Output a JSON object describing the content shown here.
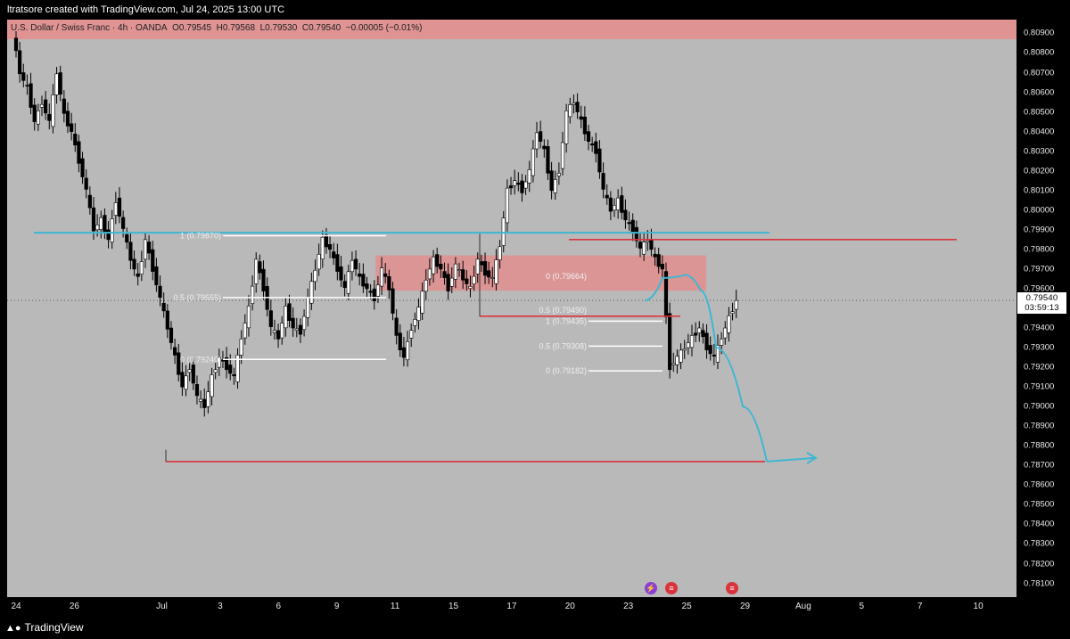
{
  "header": {
    "text": "ltratsore created with TradingView.com, Jul 24, 2025 13:00 UTC"
  },
  "symbol": {
    "name": "U.S. Dollar / Swiss Franc · 4h · OANDA",
    "open": "O0.79545",
    "high": "H0.79568",
    "low": "L0.79530",
    "close": "C0.79540",
    "change": "−0.00005 (−0.01%)"
  },
  "last_price": {
    "price": "0.79540",
    "countdown": "03:59:13"
  },
  "footer": {
    "brand": "TradingView"
  },
  "colors": {
    "bull": "#ffffff",
    "bear": "#000000",
    "zone": "#e88a8a",
    "cyan": "#3fb6d3",
    "red": "#d9343c",
    "plot_bg": "#b9b9b9"
  },
  "chart_data": {
    "type": "candlestick",
    "ylim": [
      0.7803,
      0.8097
    ],
    "price_ticks": [
      "0.80900",
      "0.80800",
      "0.80700",
      "0.80600",
      "0.80500",
      "0.80400",
      "0.80300",
      "0.80200",
      "0.80100",
      "0.80000",
      "0.79900",
      "0.79800",
      "0.79700",
      "0.79600",
      "0.79500",
      "0.79400",
      "0.79300",
      "0.79200",
      "0.79100",
      "0.79000",
      "0.78900",
      "0.78800",
      "0.78700",
      "0.78600",
      "0.78500",
      "0.78400",
      "0.78300",
      "0.78200",
      "0.78100"
    ],
    "time_ticks": [
      {
        "label": "24",
        "bar": 0
      },
      {
        "label": "26",
        "bar": 12
      },
      {
        "label": "Jul",
        "bar": 30
      },
      {
        "label": "3",
        "bar": 42
      },
      {
        "label": "6",
        "bar": 54
      },
      {
        "label": "9",
        "bar": 66
      },
      {
        "label": "11",
        "bar": 78
      },
      {
        "label": "15",
        "bar": 90
      },
      {
        "label": "17",
        "bar": 102
      },
      {
        "label": "20",
        "bar": 114
      },
      {
        "label": "23",
        "bar": 126
      },
      {
        "label": "25",
        "bar": 138
      },
      {
        "label": "29",
        "bar": 150
      },
      {
        "label": "Aug",
        "bar": 162
      },
      {
        "label": "5",
        "bar": 174
      },
      {
        "label": "7",
        "bar": 186
      },
      {
        "label": "10",
        "bar": 198
      }
    ],
    "path": [
      0.809,
      0.807,
      0.8062,
      0.8045,
      0.8055,
      0.8045,
      0.807,
      0.8048,
      0.804,
      0.8025,
      0.801,
      0.799,
      0.7995,
      0.7985,
      0.8005,
      0.799,
      0.7975,
      0.7965,
      0.7985,
      0.797,
      0.7955,
      0.794,
      0.7925,
      0.791,
      0.792,
      0.7905,
      0.79,
      0.7915,
      0.7925,
      0.792,
      0.7915,
      0.7935,
      0.795,
      0.7975,
      0.796,
      0.794,
      0.7935,
      0.795,
      0.794,
      0.7938,
      0.7955,
      0.797,
      0.7985,
      0.798,
      0.797,
      0.796,
      0.7975,
      0.7965,
      0.796,
      0.7955,
      0.797,
      0.796,
      0.7935,
      0.7925,
      0.794,
      0.795,
      0.7965,
      0.7975,
      0.797,
      0.796,
      0.7972,
      0.7965,
      0.796,
      0.7975,
      0.7968,
      0.7965,
      0.7982,
      0.801,
      0.8015,
      0.801,
      0.802,
      0.804,
      0.803,
      0.801,
      0.802,
      0.805,
      0.8055,
      0.8045,
      0.8035,
      0.803,
      0.801,
      0.8,
      0.8005,
      0.7995,
      0.799,
      0.798,
      0.7985,
      0.7975,
      0.797,
      0.792,
      0.7925,
      0.793,
      0.7935,
      0.794,
      0.793,
      0.7925,
      0.7935,
      0.7945,
      0.7954
    ],
    "annotations": {
      "top_zone": {
        "from": 0.8087,
        "to": 0.8099
      },
      "supply_zone": {
        "from": 0.7959,
        "to": 0.7977
      },
      "cyan_level": 0.79885,
      "red_level_top": 0.7985,
      "red_level_mid": 0.7946,
      "red_level_bottom": 0.7872,
      "projection": [
        0.7954,
        0.79655,
        0.7967,
        0.7959,
        0.793,
        0.79,
        0.7872
      ],
      "fib_left": [
        {
          "label": "1 (0.79870)",
          "price": 0.7987
        },
        {
          "label": "0.5 (0.79555)",
          "price": 0.79555
        },
        {
          "label": "0 (0.79240)",
          "price": 0.7924
        }
      ],
      "fib_mid": [
        {
          "label": "0 (0.79664)",
          "price": 0.79664
        },
        {
          "label": "0.5 (0.79490)",
          "price": 0.7949
        }
      ],
      "fib_right": [
        {
          "label": "1 (0.79435)",
          "price": 0.79435
        },
        {
          "label": "0.5 (0.79308)",
          "price": 0.79308
        },
        {
          "label": "0 (0.79182)",
          "price": 0.79182
        }
      ]
    }
  }
}
